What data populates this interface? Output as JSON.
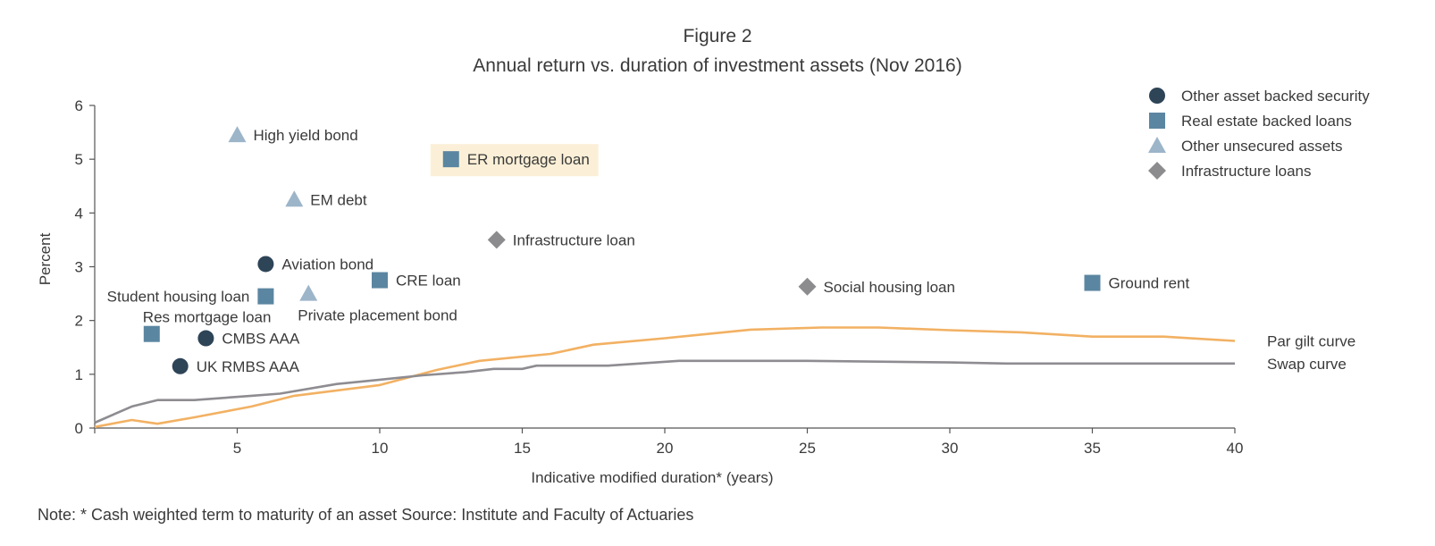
{
  "chart_data": {
    "type": "scatter",
    "title": "Figure 2",
    "subtitle": "Annual return vs. duration of investment assets  (Nov 2016)",
    "xlabel": "Indicative modified duration* (years)",
    "ylabel": "Percent",
    "xlim": [
      0,
      40
    ],
    "ylim": [
      0,
      6
    ],
    "xticks": [
      5,
      10,
      15,
      20,
      25,
      30,
      35,
      40
    ],
    "yticks": [
      0,
      1,
      2,
      3,
      4,
      5,
      6
    ],
    "grid": false,
    "legend_position": "top-right",
    "colors": {
      "asset_backed": "#2e4457",
      "real_estate": "#5b86a1",
      "unsecured": "#9db5c9",
      "infrastructure": "#8c8c8e",
      "par_gilt": "#f2b163",
      "swap": "#8e8c91",
      "highlight": "#fbf0d7"
    },
    "legend": [
      {
        "key": "asset_backed",
        "label": "Other asset backed security",
        "marker": "circle"
      },
      {
        "key": "real_estate",
        "label": "Real estate backed loans",
        "marker": "square"
      },
      {
        "key": "unsecured",
        "label": "Other unsecured assets",
        "marker": "triangle"
      },
      {
        "key": "infrastructure",
        "label": "Infrastructure loans",
        "marker": "diamond"
      }
    ],
    "points": [
      {
        "name": "High yield bond",
        "x": 5.0,
        "y": 5.45,
        "category": "unsecured",
        "label_pos": "right"
      },
      {
        "name": "ER mortgage loan",
        "x": 12.5,
        "y": 5.0,
        "category": "real_estate",
        "label_pos": "right",
        "highlight": true
      },
      {
        "name": "EM debt",
        "x": 7.0,
        "y": 4.25,
        "category": "unsecured",
        "label_pos": "right"
      },
      {
        "name": "Infrastructure loan",
        "x": 14.1,
        "y": 3.5,
        "category": "infrastructure",
        "label_pos": "right"
      },
      {
        "name": "Aviation bond",
        "x": 6.0,
        "y": 3.05,
        "category": "asset_backed",
        "label_pos": "right"
      },
      {
        "name": "CRE loan",
        "x": 10.0,
        "y": 2.75,
        "category": "real_estate",
        "label_pos": "right"
      },
      {
        "name": "Student housing loan",
        "x": 6.0,
        "y": 2.45,
        "category": "real_estate",
        "label_pos": "left"
      },
      {
        "name": "Private placement bond",
        "x": 7.5,
        "y": 2.5,
        "category": "unsecured",
        "label_pos": "below"
      },
      {
        "name": "Res mortgage loan",
        "x": 2.0,
        "y": 1.75,
        "category": "real_estate",
        "label_pos": "above-right"
      },
      {
        "name": "CMBS AAA",
        "x": 3.9,
        "y": 1.67,
        "category": "asset_backed",
        "label_pos": "right"
      },
      {
        "name": "UK RMBS AAA",
        "x": 3.0,
        "y": 1.15,
        "category": "asset_backed",
        "label_pos": "right"
      },
      {
        "name": "Social housing loan",
        "x": 25.0,
        "y": 2.63,
        "category": "infrastructure",
        "label_pos": "right"
      },
      {
        "name": "Ground rent",
        "x": 35.0,
        "y": 2.7,
        "category": "real_estate",
        "label_pos": "right"
      }
    ],
    "series": [
      {
        "name": "Par gilt curve",
        "color_key": "par_gilt",
        "x": [
          0,
          1.3,
          2.2,
          3.5,
          5.5,
          7,
          8.5,
          10,
          12,
          13.5,
          16,
          17.5,
          20,
          23,
          25.5,
          27.5,
          30,
          32.5,
          35,
          37.5,
          40
        ],
        "y": [
          0.02,
          0.15,
          0.08,
          0.2,
          0.4,
          0.6,
          0.7,
          0.8,
          1.08,
          1.25,
          1.38,
          1.55,
          1.67,
          1.83,
          1.87,
          1.87,
          1.82,
          1.78,
          1.7,
          1.7,
          1.62
        ]
      },
      {
        "name": "Swap curve",
        "color_key": "swap",
        "x": [
          0,
          1.3,
          2.2,
          3.5,
          5.5,
          6.5,
          8.5,
          10,
          11.5,
          13,
          14,
          15,
          15.5,
          18,
          20.5,
          25,
          30,
          32,
          35,
          40
        ],
        "y": [
          0.1,
          0.4,
          0.52,
          0.52,
          0.6,
          0.64,
          0.82,
          0.9,
          0.98,
          1.04,
          1.1,
          1.1,
          1.16,
          1.16,
          1.25,
          1.25,
          1.22,
          1.2,
          1.2,
          1.2
        ]
      }
    ]
  },
  "note": "Note: * Cash weighted term to maturity of an asset    Source: Institute and Faculty of Actuaries"
}
